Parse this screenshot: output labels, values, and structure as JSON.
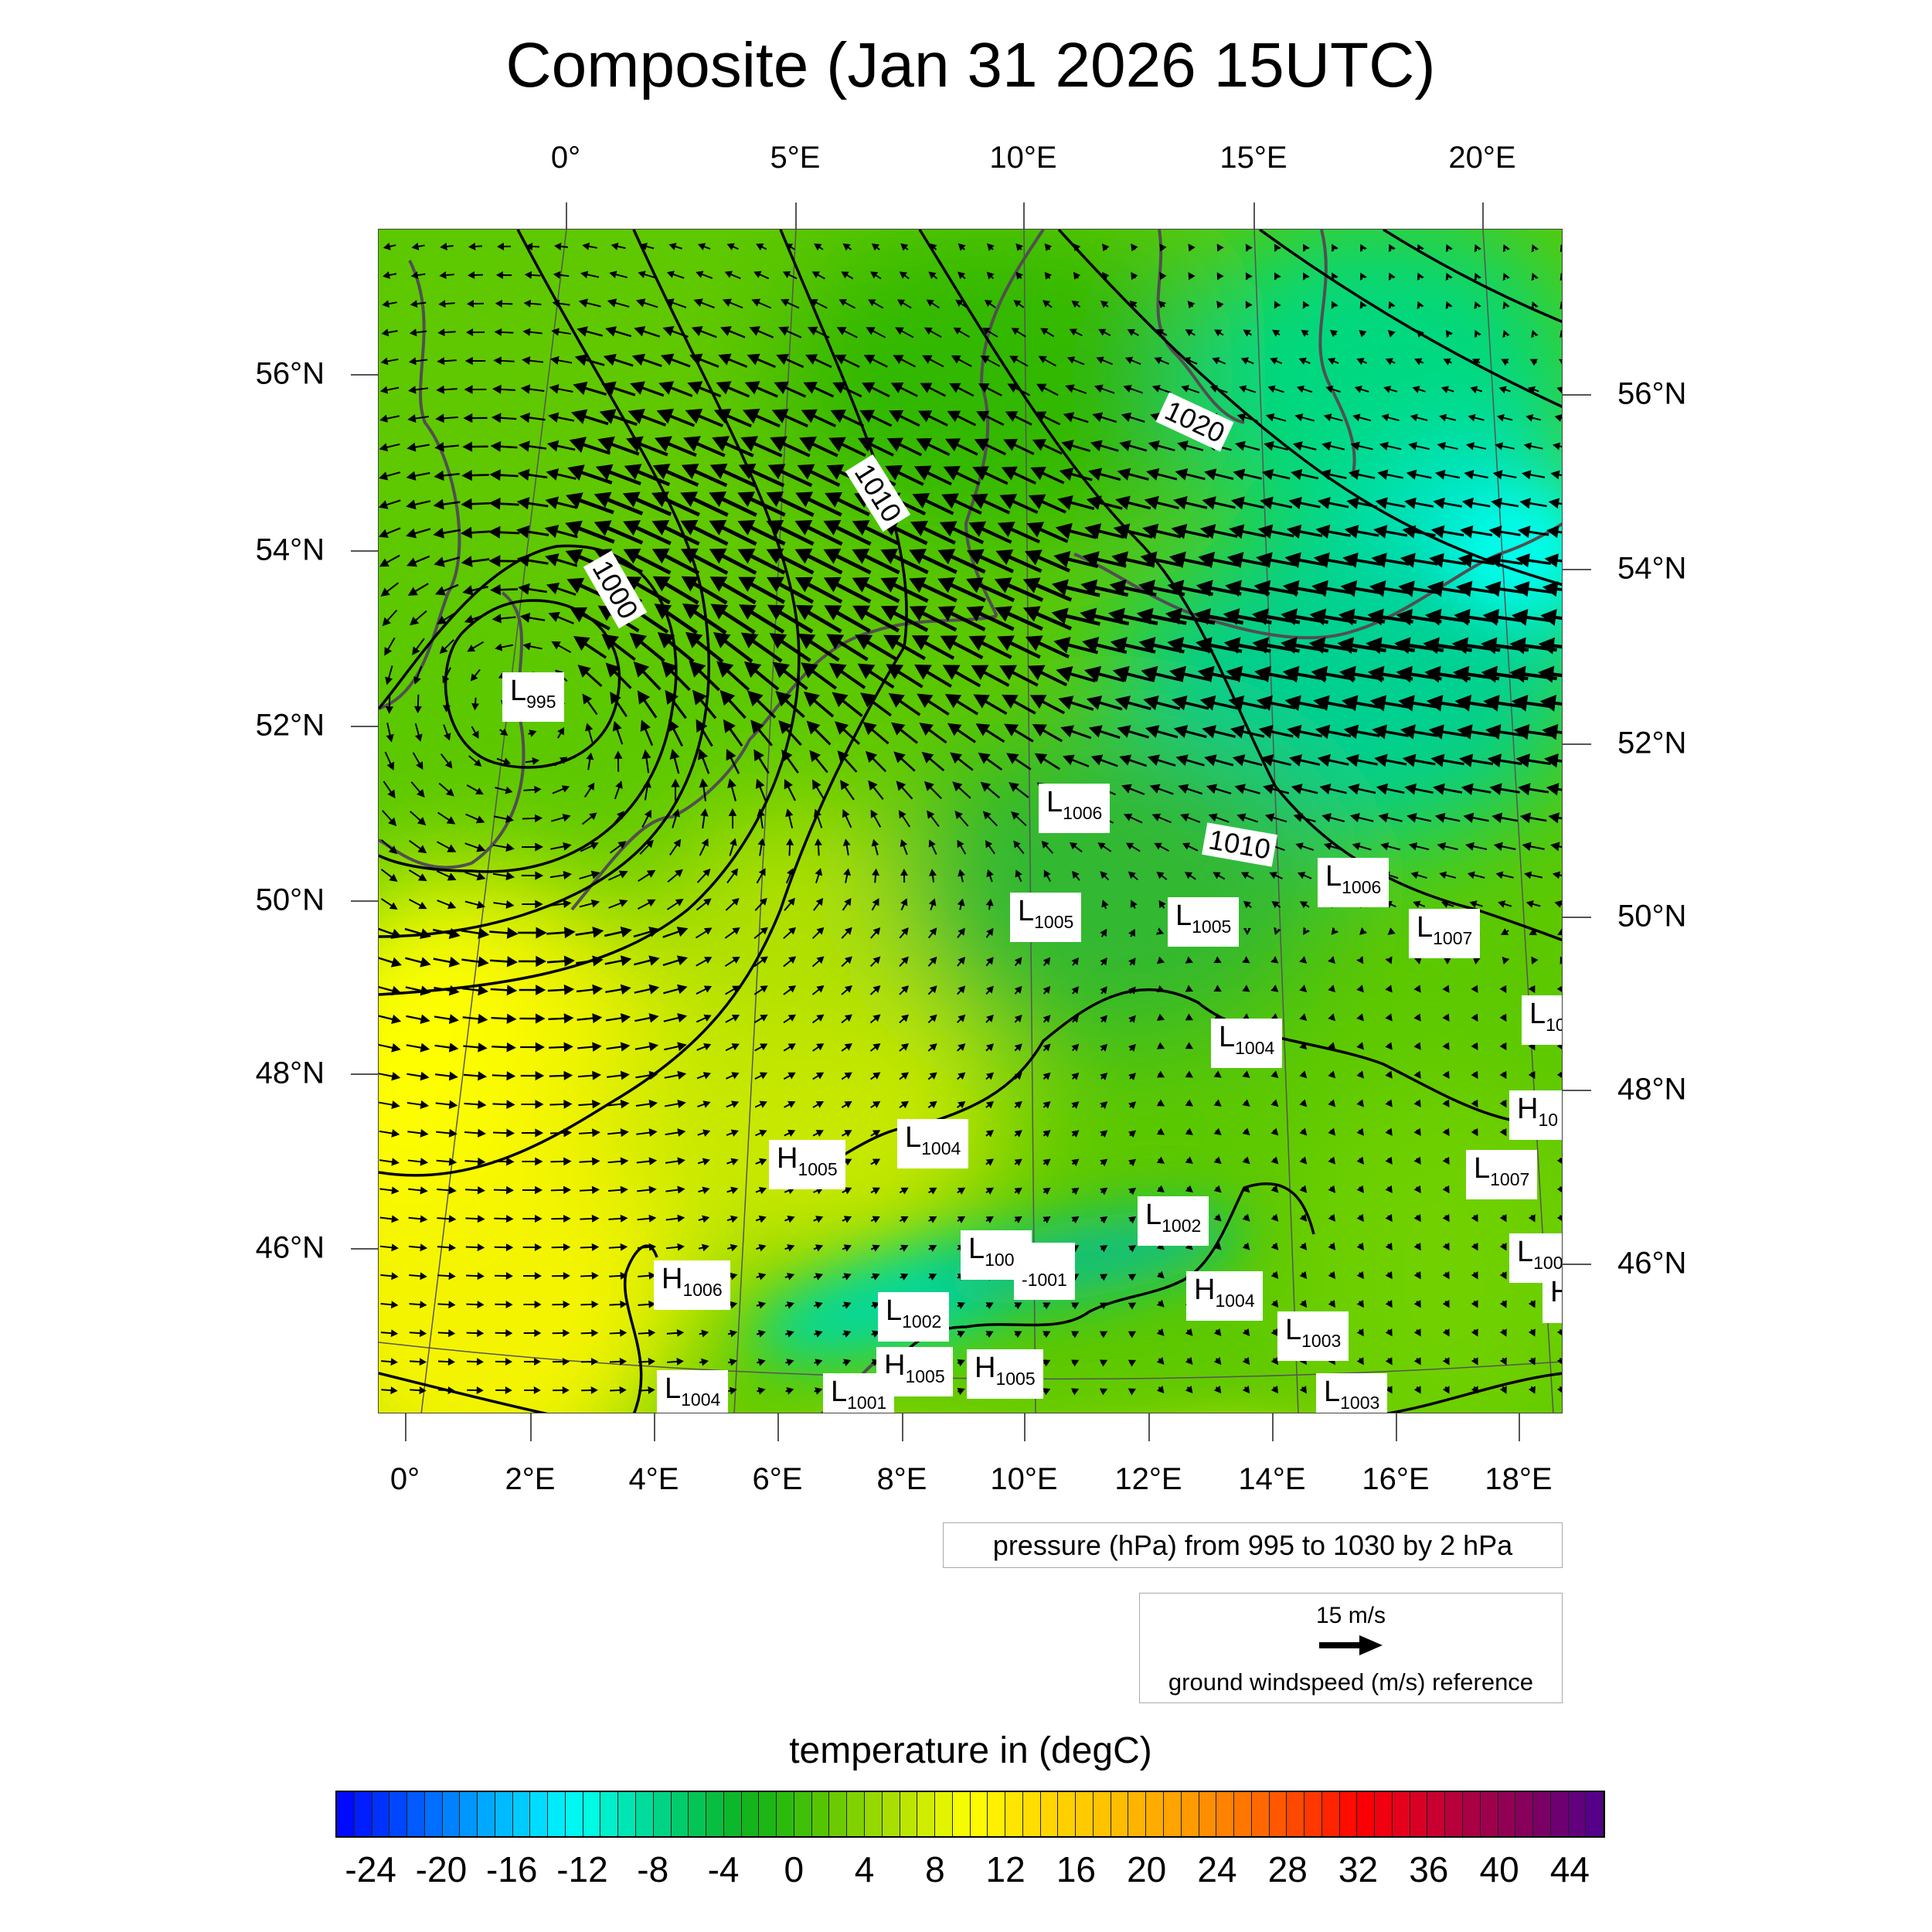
{
  "title": "Composite (Jan 31 2026 15UTC)",
  "top_lon_labels": [
    "0°",
    "5°E",
    "10°E",
    "15°E",
    "20°E"
  ],
  "bottom_lon_labels": [
    "0°",
    "2°E",
    "4°E",
    "6°E",
    "8°E",
    "10°E",
    "12°E",
    "14°E",
    "16°E",
    "18°E"
  ],
  "left_lat_labels": [
    "56°N",
    "54°N",
    "52°N",
    "50°N",
    "48°N",
    "46°N"
  ],
  "right_lat_labels": [
    "56°N",
    "54°N",
    "52°N",
    "50°N",
    "48°N",
    "46°N"
  ],
  "contour_labels": [
    "1020",
    "1010",
    "1000",
    "1010"
  ],
  "pressure_centers": [
    {
      "type": "L",
      "value": "995"
    },
    {
      "type": "L",
      "value": "1006"
    },
    {
      "type": "L",
      "value": "1006"
    },
    {
      "type": "L",
      "value": "1005"
    },
    {
      "type": "L",
      "value": "1005"
    },
    {
      "type": "L",
      "value": "1007"
    },
    {
      "type": "L",
      "value": "10"
    },
    {
      "type": "L",
      "value": "1004"
    },
    {
      "type": "H",
      "value": "10"
    },
    {
      "type": "L",
      "value": "1004"
    },
    {
      "type": "H",
      "value": "1005"
    },
    {
      "type": "L",
      "value": "1007"
    },
    {
      "type": "L",
      "value": "1002"
    },
    {
      "type": "L",
      "value": "100"
    },
    {
      "type": "L",
      "value": "1001"
    },
    {
      "type": "",
      "value": "-1001"
    },
    {
      "type": "H",
      "value": "1006"
    },
    {
      "type": "H",
      "value": "1004"
    },
    {
      "type": "H",
      "value": ""
    },
    {
      "type": "L",
      "value": "1002"
    },
    {
      "type": "L",
      "value": "1003"
    },
    {
      "type": "H",
      "value": "1005"
    },
    {
      "type": "H",
      "value": "1005"
    },
    {
      "type": "L",
      "value": "1004"
    },
    {
      "type": "L",
      "value": "1001"
    },
    {
      "type": "L",
      "value": "1003"
    }
  ],
  "pressure_legend": "pressure (hPa) from 995 to 1030 by 2 hPa",
  "wind_reference": {
    "speed_label": "15 m/s",
    "caption": "ground windspeed (m/s) reference",
    "speed": 15
  },
  "colorbar": {
    "title": "temperature in (degC)",
    "min": -26,
    "max": 46,
    "step": 1,
    "tick_labels": [
      "-24",
      "-20",
      "-16",
      "-12",
      "-8",
      "-4",
      "0",
      "4",
      "8",
      "12",
      "16",
      "20",
      "24",
      "28",
      "32",
      "36",
      "40",
      "44"
    ],
    "palette": [
      [
        -26,
        "#0000ff"
      ],
      [
        -22,
        "#0050ff"
      ],
      [
        -18,
        "#00a0ff"
      ],
      [
        -14,
        "#00e4ff"
      ],
      [
        -12,
        "#00ffee"
      ],
      [
        -9,
        "#00e0a8"
      ],
      [
        -6,
        "#00c860"
      ],
      [
        -3,
        "#10b420"
      ],
      [
        -1,
        "#20b810"
      ],
      [
        2,
        "#60c800"
      ],
      [
        5,
        "#a0dc00"
      ],
      [
        8,
        "#d8f000"
      ],
      [
        10,
        "#ffff00"
      ],
      [
        13,
        "#ffe000"
      ],
      [
        18,
        "#ffc000"
      ],
      [
        22,
        "#ffa000"
      ],
      [
        26,
        "#ff7000"
      ],
      [
        30,
        "#ff3000"
      ],
      [
        32,
        "#ff0000"
      ],
      [
        35,
        "#e00020"
      ],
      [
        38,
        "#b00040"
      ],
      [
        42,
        "#800060"
      ],
      [
        46,
        "#500090"
      ]
    ]
  }
}
